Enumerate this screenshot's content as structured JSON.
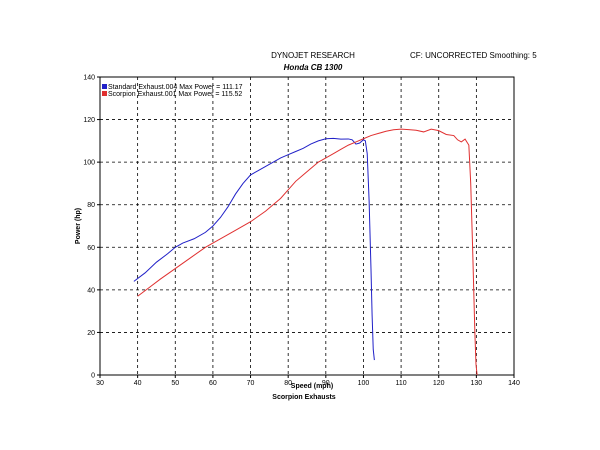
{
  "header": {
    "title": "DYNOJET RESEARCH",
    "subtitle": "Honda CB 1300",
    "cf_note": "CF: UNCORRECTED  Smoothing: 5"
  },
  "chart_data": {
    "type": "line",
    "xlabel": "Speed (mph)",
    "ylabel": "Power (hp)",
    "footer": "Scorpion Exhausts",
    "xlim": [
      30,
      140
    ],
    "ylim": [
      0,
      140
    ],
    "xticks": [
      30,
      40,
      50,
      60,
      70,
      80,
      90,
      100,
      110,
      120,
      130,
      140
    ],
    "yticks": [
      0,
      20,
      40,
      60,
      80,
      100,
      120,
      140
    ],
    "grid": true,
    "legend_position": "top-left",
    "series": [
      {
        "name": "Standard Exhaust.004 Max Power = 111.17",
        "color": "#2020c8",
        "x": [
          39,
          42,
          45,
          48,
          50,
          52,
          55,
          58,
          60,
          62,
          64,
          66,
          68,
          70,
          72,
          74,
          76,
          78,
          80,
          82,
          84,
          86,
          88,
          90,
          92,
          94,
          96,
          97,
          98,
          99,
          100,
          100.5,
          101,
          101.5,
          102,
          102.3,
          102.6,
          102.9
        ],
        "y": [
          44,
          48,
          53,
          57,
          60,
          62,
          64,
          67,
          70,
          74,
          79,
          85,
          90,
          94,
          96,
          98,
          100,
          102,
          103.5,
          105,
          106.5,
          108.5,
          110,
          111,
          111.17,
          110.8,
          110.9,
          110.5,
          108.5,
          109,
          110.5,
          110,
          104,
          82,
          50,
          28,
          12,
          7
        ]
      },
      {
        "name": "Scorpion Exhaust.001 Max Power = 115.52",
        "color": "#e03030",
        "x": [
          40,
          43,
          46,
          50,
          54,
          58,
          62,
          66,
          70,
          74,
          78,
          80,
          82,
          84,
          86,
          88,
          90,
          92,
          94,
          96,
          98,
          100,
          102,
          104,
          106,
          108,
          110,
          112,
          114,
          116,
          118,
          120,
          122,
          124,
          125,
          126,
          127,
          128,
          128.5,
          129,
          129.3,
          129.6,
          129.9,
          130.2
        ],
        "y": [
          37,
          41,
          45,
          50,
          55,
          60,
          64,
          68,
          72,
          77,
          83,
          87,
          91,
          94,
          97,
          100,
          102,
          104,
          106,
          108,
          109.5,
          111,
          112.5,
          113.5,
          114.5,
          115.2,
          115.52,
          115.3,
          115,
          114.2,
          115.5,
          114.8,
          113,
          112.5,
          110.5,
          109.5,
          110.8,
          108,
          90,
          60,
          40,
          20,
          5,
          0
        ]
      }
    ]
  }
}
